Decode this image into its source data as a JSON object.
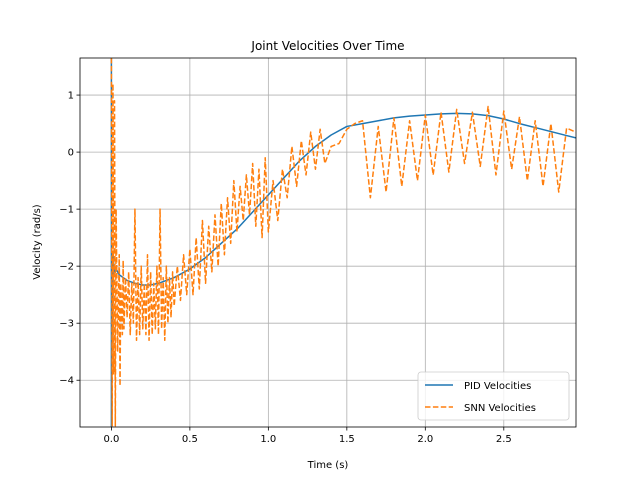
{
  "chart_data": {
    "type": "line",
    "title": "Joint Velocities Over Time",
    "xlabel": "Time (s)",
    "ylabel": "Velocity (rad/s)",
    "xlim": [
      -0.2,
      2.96
    ],
    "ylim": [
      -4.82,
      1.65
    ],
    "xticks": [
      0.0,
      0.5,
      1.0,
      1.5,
      2.0,
      2.5
    ],
    "xtick_labels": [
      "0.0",
      "0.5",
      "1.0",
      "1.5",
      "2.0",
      "2.5"
    ],
    "yticks": [
      -4,
      -3,
      -2,
      -1,
      0,
      1
    ],
    "ytick_labels": [
      "−4",
      "−3",
      "−2",
      "−1",
      "0",
      "1"
    ],
    "grid": true,
    "legend_position": "lower-right",
    "series": [
      {
        "name": "PID Velocities",
        "color": "#1f77b4",
        "style": "solid",
        "x": [
          0.0,
          0.0,
          0.005,
          0.01,
          0.02,
          0.03,
          0.05,
          0.1,
          0.15,
          0.2,
          0.25,
          0.3,
          0.35,
          0.4,
          0.5,
          0.6,
          0.7,
          0.8,
          0.9,
          1.0,
          1.1,
          1.2,
          1.3,
          1.4,
          1.5,
          1.6,
          1.7,
          1.8,
          1.9,
          2.0,
          2.1,
          2.2,
          2.3,
          2.4,
          2.5,
          2.6,
          2.7,
          2.8,
          2.9,
          2.96
        ],
        "y": [
          1.7,
          -4.82,
          -3.0,
          -1.8,
          -2.15,
          -2.05,
          -2.15,
          -2.25,
          -2.3,
          -2.33,
          -2.33,
          -2.3,
          -2.25,
          -2.2,
          -2.05,
          -1.85,
          -1.6,
          -1.35,
          -1.05,
          -0.75,
          -0.45,
          -0.15,
          0.1,
          0.3,
          0.45,
          0.5,
          0.55,
          0.6,
          0.63,
          0.65,
          0.67,
          0.68,
          0.67,
          0.64,
          0.58,
          0.5,
          0.43,
          0.36,
          0.29,
          0.25
        ]
      },
      {
        "name": "SNN Velocities",
        "color": "#ff7f0e",
        "style": "dashed",
        "x": [
          0.0,
          0.005,
          0.01,
          0.015,
          0.02,
          0.025,
          0.03,
          0.04,
          0.05,
          0.055,
          0.06,
          0.07,
          0.075,
          0.08,
          0.09,
          0.1,
          0.11,
          0.12,
          0.13,
          0.14,
          0.15,
          0.16,
          0.17,
          0.18,
          0.19,
          0.2,
          0.21,
          0.22,
          0.23,
          0.24,
          0.25,
          0.26,
          0.27,
          0.28,
          0.29,
          0.3,
          0.31,
          0.32,
          0.33,
          0.34,
          0.35,
          0.36,
          0.37,
          0.38,
          0.39,
          0.4,
          0.42,
          0.44,
          0.46,
          0.48,
          0.5,
          0.52,
          0.54,
          0.56,
          0.58,
          0.6,
          0.62,
          0.64,
          0.66,
          0.68,
          0.7,
          0.72,
          0.74,
          0.76,
          0.78,
          0.8,
          0.82,
          0.84,
          0.86,
          0.88,
          0.9,
          0.92,
          0.94,
          0.96,
          0.98,
          1.0,
          1.03,
          1.06,
          1.09,
          1.12,
          1.15,
          1.18,
          1.21,
          1.24,
          1.27,
          1.3,
          1.33,
          1.36,
          1.4,
          1.45,
          1.5,
          1.55,
          1.6,
          1.65,
          1.7,
          1.75,
          1.8,
          1.85,
          1.9,
          1.95,
          2.0,
          2.05,
          2.1,
          2.15,
          2.2,
          2.25,
          2.3,
          2.35,
          2.4,
          2.45,
          2.5,
          2.55,
          2.6,
          2.65,
          2.7,
          2.75,
          2.8,
          2.85,
          2.9,
          2.96
        ],
        "y": [
          1.65,
          -4.8,
          1.2,
          -3.9,
          0.9,
          -4.8,
          -1.0,
          -3.5,
          -1.8,
          -4.1,
          -2.3,
          -3.2,
          -1.9,
          -3.1,
          -2.2,
          -2.9,
          -2.1,
          -3.2,
          -2.3,
          -3.0,
          -1.0,
          -3.3,
          -2.2,
          -3.2,
          -2.0,
          -3.1,
          -2.3,
          -3.2,
          -1.8,
          -3.3,
          -2.1,
          -3.2,
          -2.3,
          -3.1,
          -2.0,
          -3.2,
          -1.0,
          -3.1,
          -2.2,
          -3.3,
          -2.0,
          -3.0,
          -2.2,
          -2.9,
          -2.1,
          -2.7,
          -2.0,
          -2.6,
          -1.8,
          -2.5,
          -1.7,
          -2.5,
          -1.5,
          -2.4,
          -1.2,
          -2.3,
          -1.3,
          -2.1,
          -1.1,
          -2.0,
          -0.9,
          -1.8,
          -0.8,
          -1.6,
          -0.5,
          -1.4,
          -0.6,
          -1.2,
          -0.4,
          -1.1,
          -0.2,
          -1.3,
          -0.3,
          -1.5,
          -0.1,
          -1.4,
          -0.5,
          -1.2,
          -0.3,
          -0.8,
          0.1,
          -0.6,
          0.2,
          -0.4,
          0.35,
          -0.3,
          0.4,
          -0.2,
          0.1,
          0.15,
          0.4,
          0.5,
          0.55,
          -0.8,
          0.45,
          -0.7,
          0.6,
          -0.6,
          0.55,
          -0.5,
          0.65,
          -0.4,
          0.7,
          -0.35,
          0.75,
          -0.2,
          0.7,
          -0.25,
          0.8,
          -0.4,
          0.72,
          -0.3,
          0.62,
          -0.5,
          0.55,
          -0.6,
          0.5,
          -0.7,
          0.42,
          0.35
        ]
      }
    ]
  }
}
